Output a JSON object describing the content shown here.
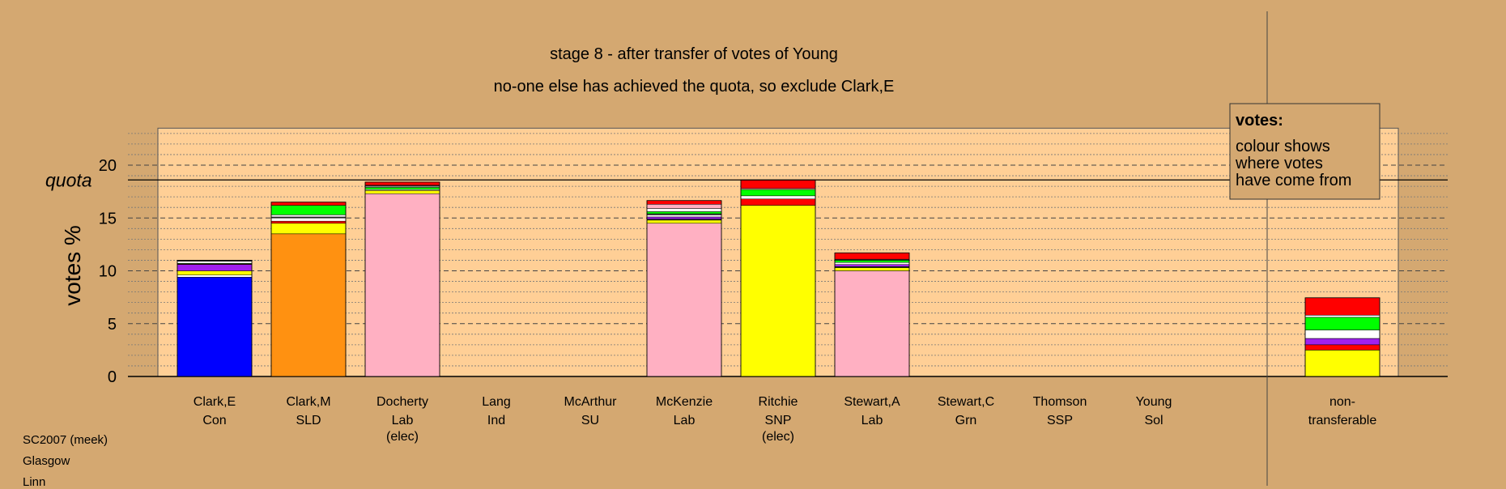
{
  "colors": {
    "background": "#d4a871",
    "plot_area": "#ffcf96",
    "Con": "#0000ff",
    "SLD": "#ff9111",
    "Lab": "#ffb0c2",
    "SNP": "#ffff00",
    "Red": "#ff0000",
    "Green": "#00ff00",
    "Purple": "#a020f0",
    "White": "#ffffff",
    "Dark": "#333333"
  },
  "caption_lines": [
    "SC2007 (meek)",
    "Glasgow",
    "Linn"
  ],
  "chart_data": {
    "type": "bar",
    "stacked": true,
    "title": "stage 8 - after transfer of votes of Young",
    "subtitle": "no-one else has achieved the quota, so exclude Clark,E",
    "ylabel": "votes %",
    "ylim": [
      0,
      23.5
    ],
    "yticks": [
      0,
      5,
      10,
      15,
      20
    ],
    "quota": 18.6,
    "quota_label": "quota",
    "grid": true,
    "legend": {
      "title": "votes:",
      "lines": [
        "colour shows",
        "where votes",
        "have come from"
      ],
      "placement": "top-right"
    },
    "categories": [
      {
        "name": "Clark,E",
        "party": "Con",
        "note": ""
      },
      {
        "name": "Clark,M",
        "party": "SLD",
        "note": ""
      },
      {
        "name": "Docherty",
        "party": "Lab",
        "note": "(elec)"
      },
      {
        "name": "Lang",
        "party": "Ind",
        "note": ""
      },
      {
        "name": "McArthur",
        "party": "SU",
        "note": ""
      },
      {
        "name": "McKenzie",
        "party": "Lab",
        "note": ""
      },
      {
        "name": "Ritchie",
        "party": "SNP",
        "note": "(elec)"
      },
      {
        "name": "Stewart,A",
        "party": "Lab",
        "note": ""
      },
      {
        "name": "Stewart,C",
        "party": "Grn",
        "note": ""
      },
      {
        "name": "Thomson",
        "party": "SSP",
        "note": ""
      },
      {
        "name": "Young",
        "party": "Sol",
        "note": ""
      }
    ],
    "nontransferable": {
      "line1": "non-",
      "line2": "transferable"
    },
    "stacks": [
      [
        {
          "c": "Con",
          "v": 9.4
        },
        {
          "c": "White",
          "v": 0.2
        },
        {
          "c": "SNP",
          "v": 0.4
        },
        {
          "c": "Purple",
          "v": 0.6
        },
        {
          "c": "Red",
          "v": 0.05
        },
        {
          "c": "Green",
          "v": 0.05
        },
        {
          "c": "White",
          "v": 0.2
        },
        {
          "c": "Dark",
          "v": 0.1
        }
      ],
      [
        {
          "c": "SLD",
          "v": 13.5
        },
        {
          "c": "SNP",
          "v": 1.0
        },
        {
          "c": "Red",
          "v": 0.2
        },
        {
          "c": "White",
          "v": 0.3
        },
        {
          "c": "Dark",
          "v": 0.1
        },
        {
          "c": "White",
          "v": 0.2
        },
        {
          "c": "Green",
          "v": 0.9
        },
        {
          "c": "Red",
          "v": 0.3
        }
      ],
      [
        {
          "c": "Lab",
          "v": 17.3
        },
        {
          "c": "SNP",
          "v": 0.3
        },
        {
          "c": "White",
          "v": 0.1
        },
        {
          "c": "Green",
          "v": 0.2
        },
        {
          "c": "White",
          "v": 0.1
        },
        {
          "c": "Dark",
          "v": 0.1
        },
        {
          "c": "Red",
          "v": 0.3
        }
      ],
      [],
      [],
      [
        {
          "c": "Lab",
          "v": 14.5
        },
        {
          "c": "SNP",
          "v": 0.3
        },
        {
          "c": "Dark",
          "v": 0.1
        },
        {
          "c": "Purple",
          "v": 0.2
        },
        {
          "c": "White",
          "v": 0.2
        },
        {
          "c": "Dark",
          "v": 0.1
        },
        {
          "c": "Green",
          "v": 0.2
        },
        {
          "c": "White",
          "v": 0.3
        },
        {
          "c": "Lab",
          "v": 0.4
        },
        {
          "c": "Red",
          "v": 0.35
        }
      ],
      [
        {
          "c": "SNP",
          "v": 16.2
        },
        {
          "c": "Red",
          "v": 0.6
        },
        {
          "c": "White",
          "v": 0.3
        },
        {
          "c": "Green",
          "v": 0.6
        },
        {
          "c": "Lab",
          "v": 0.1
        },
        {
          "c": "Red",
          "v": 0.8
        }
      ],
      [
        {
          "c": "Lab",
          "v": 10.0
        },
        {
          "c": "SNP",
          "v": 0.3
        },
        {
          "c": "Dark",
          "v": 0.1
        },
        {
          "c": "Purple",
          "v": 0.2
        },
        {
          "c": "White",
          "v": 0.2
        },
        {
          "c": "Green",
          "v": 0.2
        },
        {
          "c": "Dark",
          "v": 0.1
        },
        {
          "c": "Red",
          "v": 0.6
        }
      ],
      [],
      [],
      [],
      [
        {
          "c": "SNP",
          "v": 2.5
        },
        {
          "c": "Red",
          "v": 0.5
        },
        {
          "c": "Purple",
          "v": 0.6
        },
        {
          "c": "White",
          "v": 0.8
        },
        {
          "c": "Green",
          "v": 1.2
        },
        {
          "c": "White",
          "v": 0.2
        },
        {
          "c": "Red",
          "v": 1.65
        }
      ]
    ]
  }
}
